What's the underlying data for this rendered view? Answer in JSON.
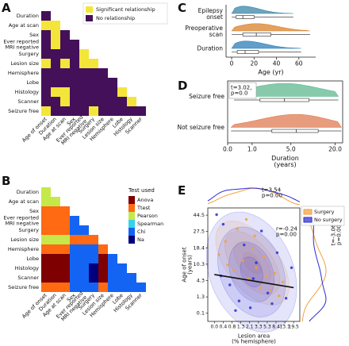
{
  "chart_data": [
    {
      "type": "heatmap",
      "label": "A",
      "rows": [
        "Duration",
        "Age at scan",
        "Sex",
        "Ever reported\nMRI negative",
        "Surgery",
        "Lesion size",
        "Hemisphere",
        "Lobe",
        "Histology",
        "Scanner",
        "Seizure free"
      ],
      "columns": [
        "Age of onset",
        "Duration",
        "Age at scan",
        "Sex",
        "Ever reported\nMRI negative",
        "Surgery",
        "Lesion size",
        "Hemisphere",
        "Lobe",
        "Histology",
        "Scanner"
      ],
      "values": [
        [
          1
        ],
        [
          0,
          0
        ],
        [
          1,
          0,
          1
        ],
        [
          1,
          0,
          1,
          1
        ],
        [
          1,
          1,
          1,
          1,
          0
        ],
        [
          0,
          1,
          0,
          1,
          0,
          0
        ],
        [
          1,
          1,
          1,
          1,
          1,
          1,
          1
        ],
        [
          1,
          1,
          1,
          1,
          1,
          1,
          1,
          1
        ],
        [
          1,
          0,
          0,
          1,
          1,
          1,
          1,
          1,
          0
        ],
        [
          1,
          1,
          0,
          1,
          1,
          1,
          1,
          1,
          1,
          0
        ],
        [
          0,
          1,
          1,
          1,
          1,
          0,
          1,
          1,
          1,
          1,
          1
        ]
      ],
      "legend": [
        {
          "name": "Significant relationship",
          "color": "#f4e53a"
        },
        {
          "name": "No relationship",
          "color": "#44105a"
        }
      ]
    },
    {
      "type": "heatmap",
      "label": "B",
      "legend_title": "Test used",
      "rows": [
        "Duration",
        "Age at scan",
        "Sex",
        "Ever reported\nMRI negative",
        "Surgery",
        "Lesion size",
        "Hemisphere",
        "Lobe",
        "Histology",
        "Scanner",
        "Seizure free"
      ],
      "columns": [
        "Age of onset",
        "Duration",
        "Age at scan",
        "Sex",
        "Ever reported\nMRI negative",
        "Surgery",
        "Lesion size",
        "Hemisphere",
        "Lobe",
        "Histology",
        "Scanner"
      ],
      "values": [
        [
          2
        ],
        [
          2,
          2
        ],
        [
          1,
          1,
          1
        ],
        [
          1,
          1,
          1,
          4
        ],
        [
          1,
          1,
          1,
          4,
          4
        ],
        [
          2,
          2,
          2,
          1,
          1,
          1
        ],
        [
          1,
          1,
          1,
          4,
          4,
          4,
          1
        ],
        [
          0,
          0,
          0,
          4,
          4,
          4,
          0,
          4
        ],
        [
          0,
          0,
          0,
          4,
          4,
          5,
          0,
          4,
          4
        ],
        [
          0,
          0,
          0,
          4,
          4,
          5,
          0,
          4,
          4,
          4
        ],
        [
          1,
          1,
          1,
          4,
          4,
          4,
          1,
          4,
          4,
          4,
          4
        ]
      ],
      "legend": [
        {
          "name": "Anova",
          "color": "#7f0000"
        },
        {
          "name": "Ttest",
          "color": "#ff6a13"
        },
        {
          "name": "Pearson",
          "color": "#c6e94a"
        },
        {
          "name": "Spearman",
          "color": "#33d4e8"
        },
        {
          "name": "Chi",
          "color": "#1464f4"
        },
        {
          "name": "Na",
          "color": "#00007f"
        }
      ]
    },
    {
      "type": "box",
      "label": "C",
      "xlabel": "Age (yr)",
      "categories": [
        "Epilepsy\nonset",
        "Preoperative\nscan",
        "Duration"
      ],
      "values": [
        [
          0,
          4,
          10,
          20,
          55
        ],
        [
          0,
          10,
          22,
          35,
          70
        ],
        [
          0,
          5,
          12,
          24,
          62
        ]
      ],
      "colors": [
        "#3a86a8",
        "#d9822b",
        "#2c7fb8"
      ],
      "xlim": [
        -5,
        75
      ],
      "xticks": [
        0,
        20,
        40,
        60
      ]
    },
    {
      "type": "box",
      "label": "D",
      "xlabel": "Duration\n(years)",
      "annotation": "t=3.02,\np=0.0",
      "categories": [
        "Seizure free",
        "Not seizure free"
      ],
      "values": [
        [
          0.2,
          1.5,
          4,
          9,
          22
        ],
        [
          0.1,
          2.5,
          6,
          12,
          24
        ]
      ],
      "colors": [
        "#5fb88f",
        "#e07b53"
      ],
      "xscale": "symlog",
      "xlim": [
        0,
        25
      ],
      "xticks": [
        {
          "value": 0,
          "label": "0.0"
        },
        {
          "value": 1,
          "label": "1.0"
        },
        {
          "value": 5,
          "label": "5.0"
        },
        {
          "value": 20,
          "label": "20.0"
        }
      ]
    },
    {
      "type": "scatter",
      "label": "E",
      "xlabel": "Lesion area\n(% hemisphere)",
      "ylabel": "Age of onset\n(years)",
      "annotations": [
        "t=3.54\np=0.00",
        "t=-3.06\np=0.00",
        "r=-0.24\np=0.00"
      ],
      "legend_loc": "upper right",
      "xscale": "quantile",
      "yscale": "quantile",
      "xlim": [
        -0.3,
        24
      ],
      "ylim": [
        -0.5,
        52
      ],
      "xticks": [
        {
          "value": 0,
          "label": "0.0"
        },
        0.4,
        0.8,
        1.3,
        2.1,
        3.3,
        5.3,
        8.4,
        13.1,
        19.5
      ],
      "yticks": [
        0.1,
        1.3,
        4.3,
        10.3,
        18.4,
        27.5,
        44.5
      ],
      "series": [
        {
          "name": "Surgery",
          "color": "#f5a03a",
          "x": [
            0.2,
            0.5,
            0.9,
            1.1,
            1.5,
            2.0,
            2.5,
            3.0,
            3.8,
            4.5,
            5.0,
            6.5,
            8.0,
            10.0,
            1.8,
            0.6,
            2.8,
            12.0
          ],
          "values": [
            15,
            22,
            8,
            30,
            12,
            5,
            18,
            9,
            3,
            14,
            6,
            2.5,
            7,
            1.5,
            40,
            10,
            25,
            4
          ]
        },
        {
          "name": "No surgery",
          "color": "#2b2bd6",
          "x": [
            0.1,
            0.3,
            0.7,
            1.2,
            1.6,
            2.2,
            3.0,
            4.0,
            5.5,
            7.0,
            9.0,
            14.0,
            0.4,
            1.0,
            2.6,
            18.0
          ],
          "values": [
            45,
            6,
            3.5,
            1.0,
            20,
            0.5,
            11,
            28,
            2,
            0.8,
            16,
            1.2,
            35,
            0.3,
            5,
            9
          ]
        }
      ],
      "fit": {
        "x": [
          0,
          19.5
        ],
        "y": [
          6.5,
          3.0
        ]
      }
    }
  ]
}
